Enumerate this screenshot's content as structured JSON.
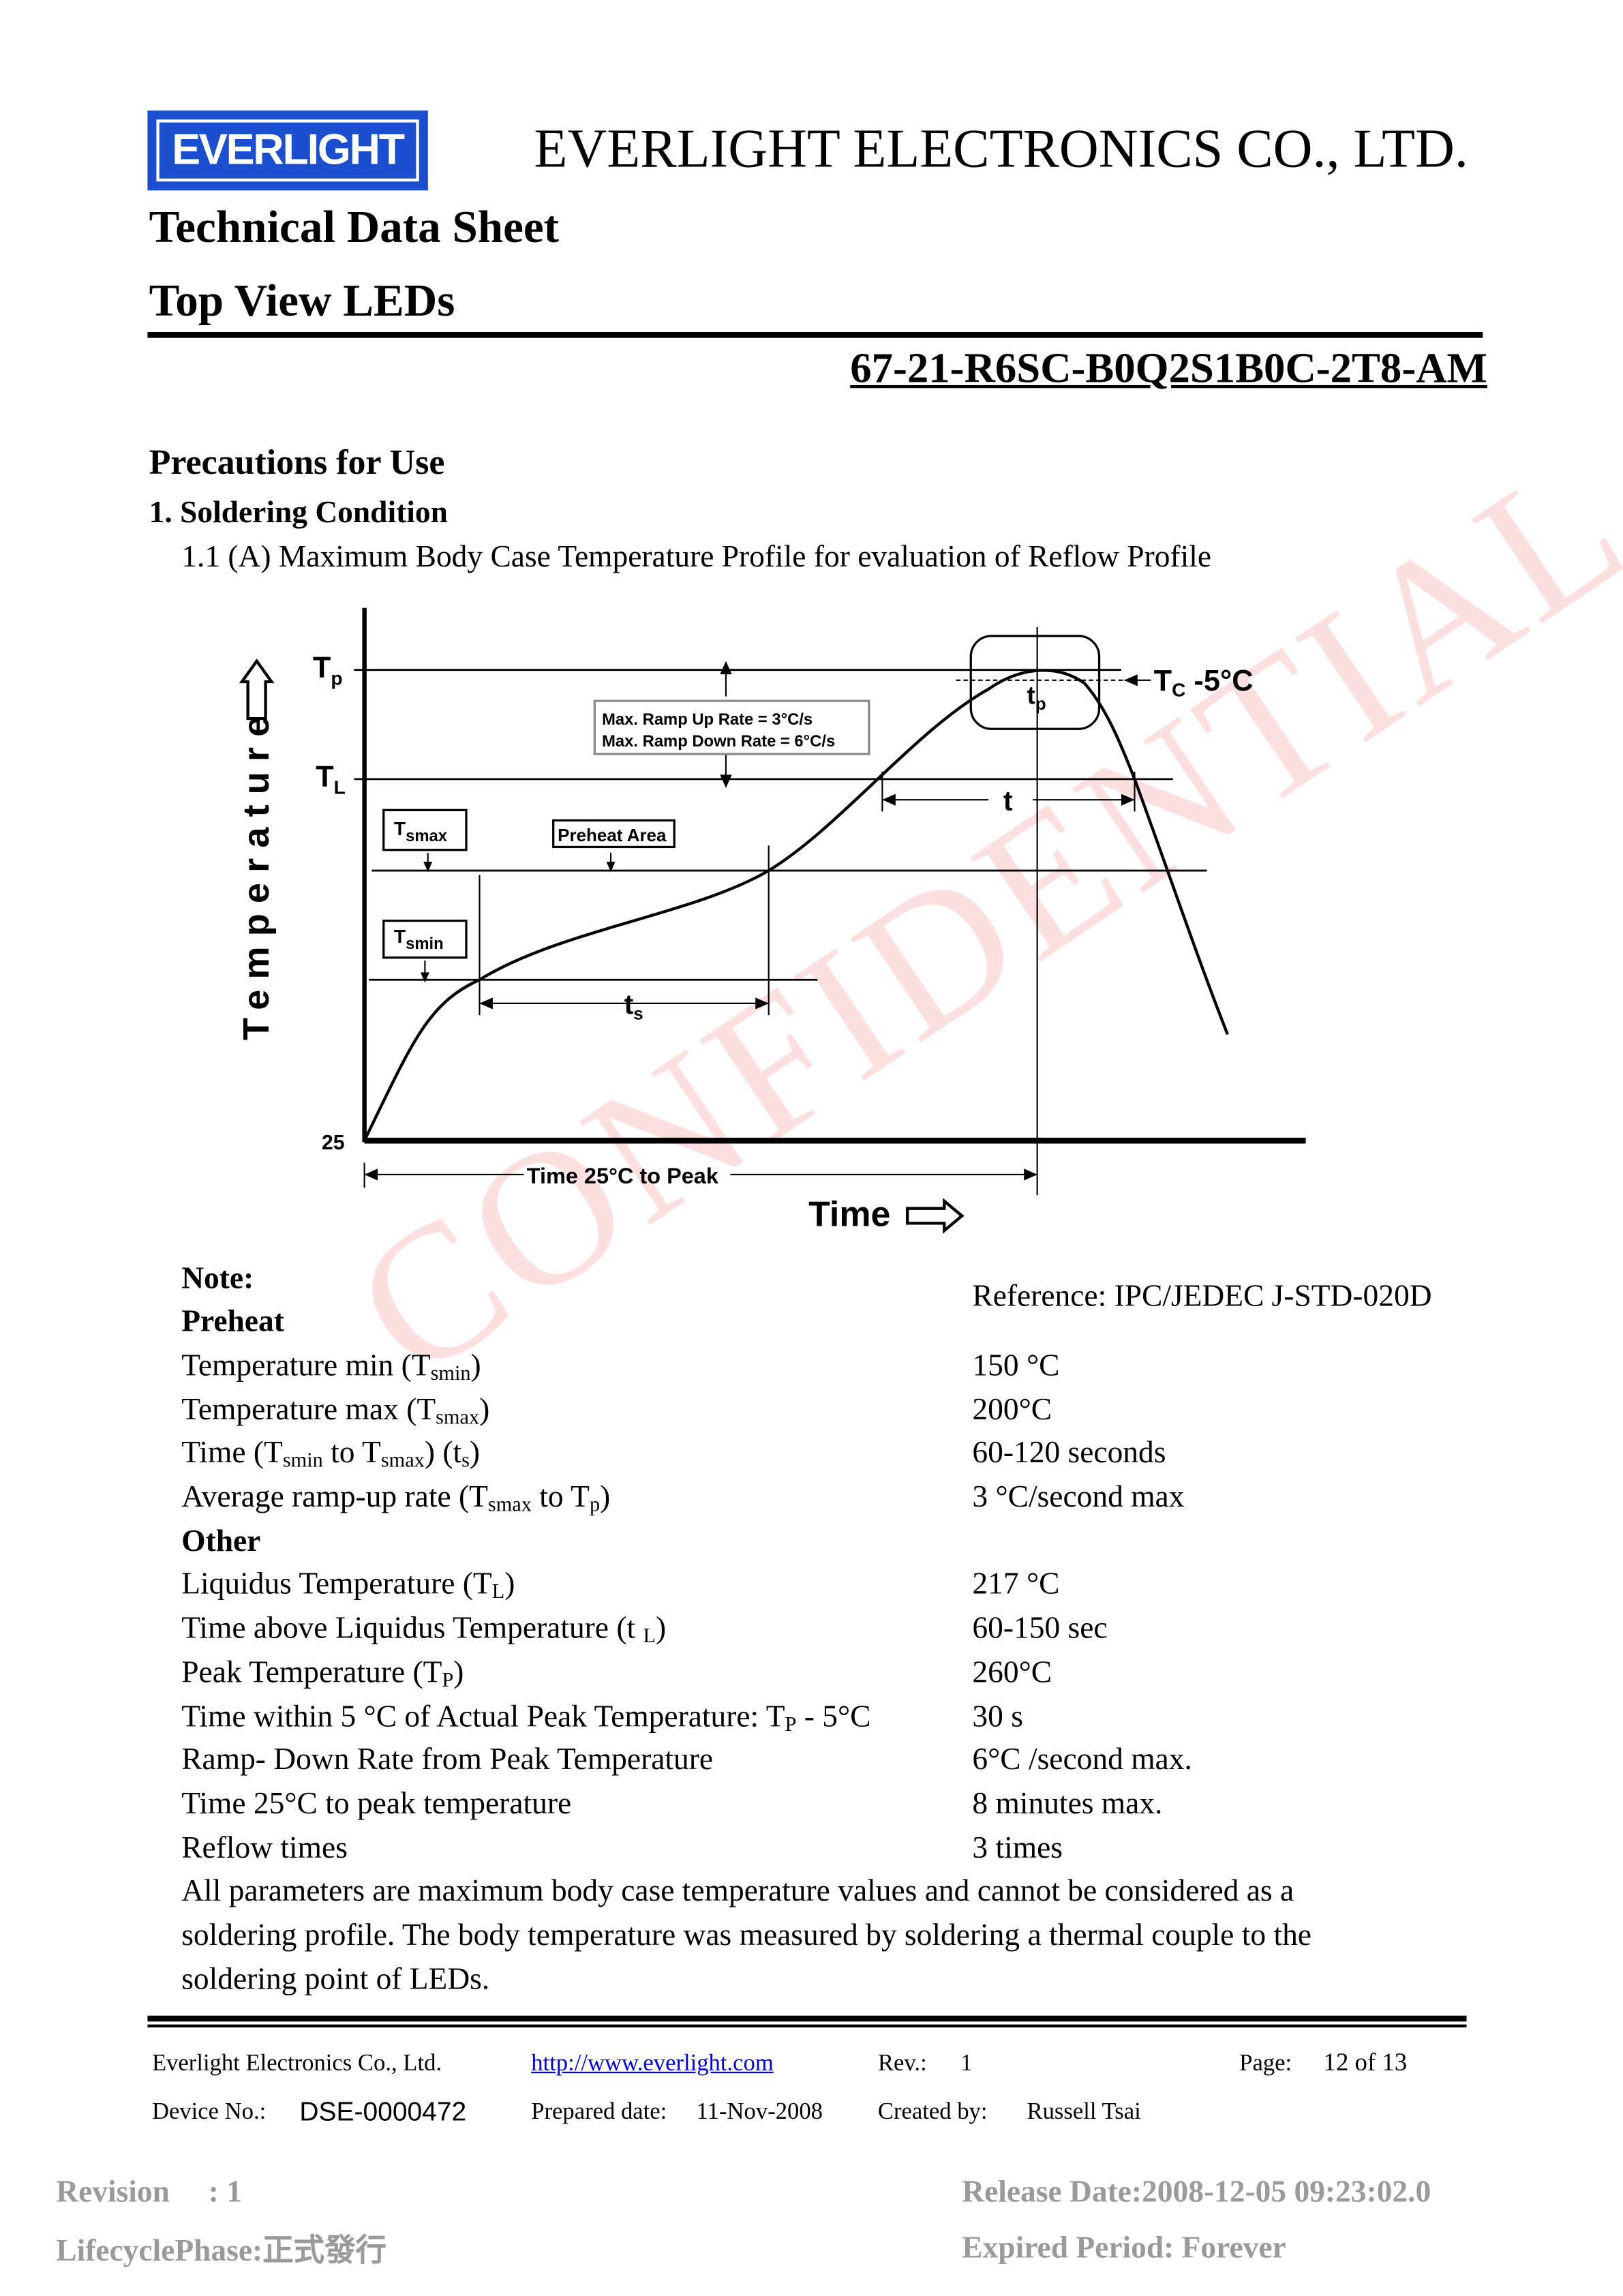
{
  "header": {
    "logo_text": "EVERLIGHT",
    "company": "EVERLIGHT ELECTRONICS CO., LTD.",
    "doc_type": "Technical Data Sheet",
    "product": "Top View LEDs",
    "part_number": "67-21-R6SC-B0Q2S1B0C-2T8-AM",
    "brand_color": "#1b4fcf"
  },
  "section": {
    "title": "Precautions for Use",
    "subtitle": "1. Soldering Condition",
    "caption": "1.1 (A) Maximum Body Case Temperature Profile for evaluation of Reflow Profile"
  },
  "diagram": {
    "y_label": "Temperature",
    "x_label": "Time",
    "tp": "T",
    "tp_sub": "p",
    "tl": "T",
    "tl_sub": "L",
    "y_origin": "25",
    "tc_label": "T",
    "tc_sub": "C",
    "tc_suffix": " -5°C",
    "ramp_up": "Max. Ramp Up Rate = 3°C/s",
    "ramp_down": "Max. Ramp Down Rate = 6°C/s",
    "tsmax": "T",
    "tsmax_sub": "smax",
    "tsmin": "T",
    "tsmin_sub": "smin",
    "preheat": "Preheat Area",
    "ts": "t",
    "ts_sub": "s",
    "t": "t",
    "tpk": "t",
    "tpk_sub": "p",
    "time_to_peak": "Time 25°C to Peak"
  },
  "notes": {
    "note_label": "Note:",
    "reference": "Reference: IPC/JEDEC J-STD-020D",
    "preheat_label": "Preheat",
    "preheat": [
      {
        "label": "Temperature min (T",
        "sub": "smin",
        "tail": ")",
        "value": "150 °C"
      },
      {
        "label": "Temperature max (T",
        "sub": "smax",
        "tail": ")",
        "value": "200°C"
      },
      {
        "label": "Time (T",
        "sub": "smin",
        "mid": " to T",
        "sub2": "smax",
        "mid2": ") (t",
        "sub3": "s",
        "tail": ")",
        "value": "60-120 seconds"
      },
      {
        "label": "Average ramp-up rate (T",
        "sub": "smax",
        "mid": " to T",
        "sub2": "p",
        "tail": ")",
        "value": "3 °C/second max"
      }
    ],
    "other_label": "Other",
    "other": [
      {
        "label": "Liquidus Temperature (T",
        "sub": "L",
        "tail": ")",
        "value": "217 °C"
      },
      {
        "label": "Time above Liquidus Temperature (t ",
        "sub": "L",
        "tail": ")",
        "value": "60-150 sec"
      },
      {
        "label": "Peak Temperature (T",
        "sub": "P",
        "tail": ")",
        "value": "260°C"
      },
      {
        "label": "Time within 5 °C of Actual Peak Temperature: T",
        "sub": "P",
        "tail": " - 5°C",
        "value": "30 s"
      },
      {
        "label": "Ramp- Down Rate from Peak Temperature",
        "value": "6°C /second max."
      },
      {
        "label": "Time 25°C to peak temperature",
        "value": "8 minutes max."
      },
      {
        "label": "Reflow times",
        "value": "3 times"
      }
    ],
    "paragraph": [
      "All parameters are maximum body case temperature values and cannot be considered as a",
      "soldering profile. The body temperature was measured by soldering a thermal couple to the",
      "soldering point of LEDs."
    ]
  },
  "watermark": "CONFIDENTIAL",
  "footer": {
    "company": "Everlight Electronics Co., Ltd.",
    "url": "http://www.everlight.com",
    "rev_label": "Rev.:",
    "rev": "1",
    "page_label": "Page:",
    "page": "12 of 13",
    "device_label": "Device No.:",
    "device": "DSE-0000472",
    "prepared_label": "Prepared date:",
    "prepared": "11-Nov-2008",
    "created_label": "Created by:",
    "created": "Russell Tsai"
  },
  "stamp": {
    "revision": "Revision     : 1",
    "lifecycle": "LifecyclePhase:正式發行",
    "release": "Release Date:2008-12-05 09:23:02.0",
    "expired": "Expired Period: Forever"
  }
}
